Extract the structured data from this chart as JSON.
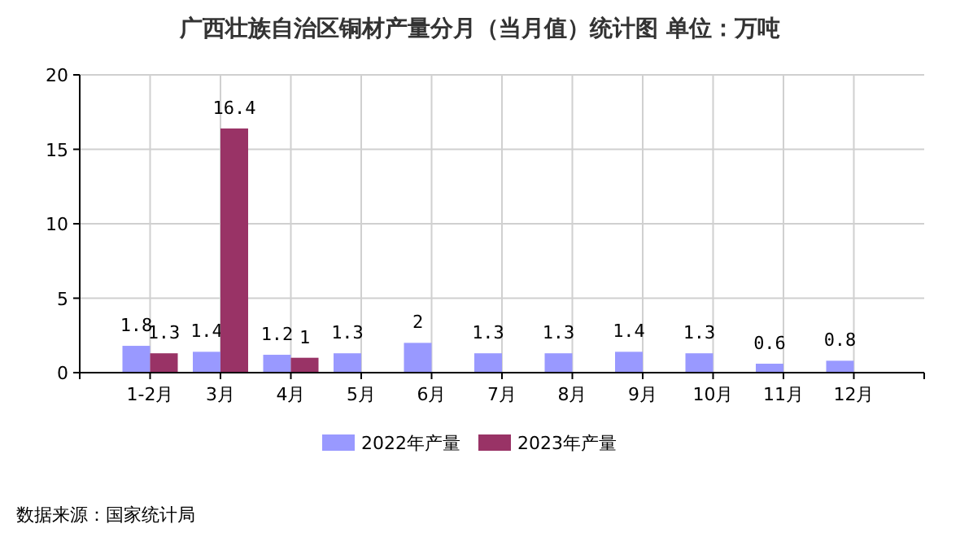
{
  "chart_data": {
    "type": "bar",
    "title": "广西壮族自治区铜材产量分月（当月值）统计图 单位：万吨",
    "categories": [
      "1-2月",
      "3月",
      "4月",
      "5月",
      "6月",
      "7月",
      "8月",
      "9月",
      "10月",
      "11月",
      "12月"
    ],
    "series": [
      {
        "name": "2022年产量",
        "color": "#9999ff",
        "values": [
          1.8,
          1.4,
          1.2,
          1.3,
          2,
          1.3,
          1.3,
          1.4,
          1.3,
          0.6,
          0.8
        ]
      },
      {
        "name": "2023年产量",
        "color": "#993366",
        "values": [
          1.3,
          16.4,
          1,
          null,
          null,
          null,
          null,
          null,
          null,
          null,
          null
        ]
      }
    ],
    "ylim": [
      0,
      20
    ],
    "yticks": [
      0,
      5,
      10,
      15,
      20
    ],
    "grid": true,
    "legend": "bottom",
    "data_labels": true,
    "annotations": [
      "数据来源：国家统计局"
    ]
  }
}
